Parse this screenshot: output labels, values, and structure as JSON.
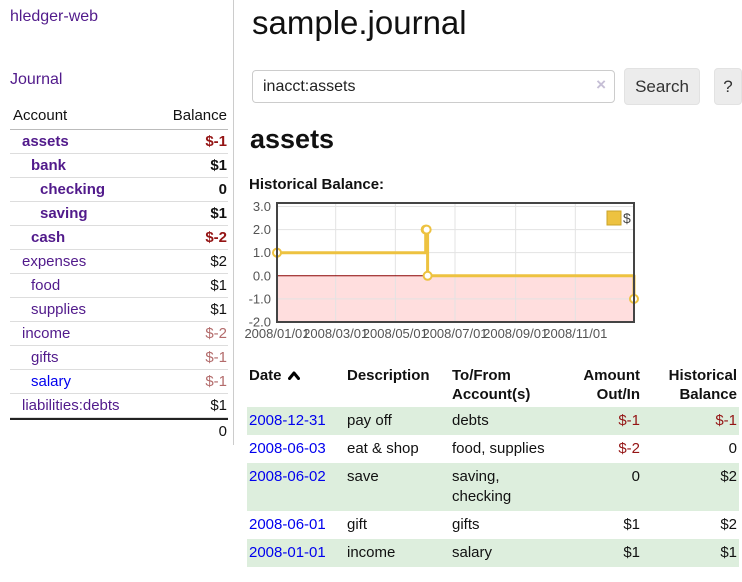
{
  "app": {
    "brand": "hledger-web",
    "nav": {
      "journal": "Journal"
    }
  },
  "colors": {
    "link_purple": "#511a8b",
    "link_blue": "#0000ee",
    "negative_strong": "#941414",
    "negative_soft": "#b36b6b",
    "row_stripe_green": "#ddeedd",
    "series_yellow": "#edc240",
    "zero_line": "#8b0000",
    "negative_region": "rgba(255,0,0,0.13)"
  },
  "sidebar": {
    "header": {
      "account": "Account",
      "balance": "Balance"
    },
    "accounts": [
      {
        "name": "assets",
        "depth": 1,
        "bold": true,
        "balance": "$-1",
        "balance_class": "neg-strong"
      },
      {
        "name": "bank",
        "depth": 2,
        "bold": true,
        "balance": "$1",
        "balance_class": ""
      },
      {
        "name": "checking",
        "depth": 3,
        "bold": true,
        "balance": "0",
        "balance_class": ""
      },
      {
        "name": "saving",
        "depth": 3,
        "bold": true,
        "balance": "$1",
        "balance_class": ""
      },
      {
        "name": "cash",
        "depth": 2,
        "bold": true,
        "balance": "$-2",
        "balance_class": "neg-strong"
      },
      {
        "name": "expenses",
        "depth": 1,
        "bold": false,
        "balance": "$2",
        "balance_class": ""
      },
      {
        "name": "food",
        "depth": 2,
        "bold": false,
        "balance": "$1",
        "balance_class": ""
      },
      {
        "name": "supplies",
        "depth": 2,
        "bold": false,
        "balance": "$1",
        "balance_class": ""
      },
      {
        "name": "income",
        "depth": 1,
        "bold": false,
        "balance": "$-2",
        "balance_class": "neg-soft"
      },
      {
        "name": "gifts",
        "depth": 2,
        "bold": false,
        "balance": "$-1",
        "balance_class": "neg-soft"
      },
      {
        "name": "salary",
        "depth": 2,
        "bold": false,
        "link_class": "blue",
        "balance": "$-1",
        "balance_class": "neg-soft"
      },
      {
        "name": "liabilities:debts",
        "depth": 1,
        "bold": false,
        "balance": "$1",
        "balance_class": ""
      }
    ],
    "total": "0"
  },
  "main": {
    "title": "sample.journal",
    "search": {
      "value": "inacct:assets",
      "clear_label": "×",
      "search_button": "Search",
      "help_button": "?"
    },
    "account_heading": "assets",
    "chart_label": "Historical Balance:"
  },
  "chart_data": {
    "type": "line",
    "title": "Historical Balance of assets",
    "step": true,
    "legend": {
      "label": "$",
      "position": "top-right"
    },
    "ylim": [
      -2,
      3
    ],
    "grid": true,
    "x_range": [
      "2008-01-01",
      "2008-12-31"
    ],
    "x_ticks": [
      {
        "date": "2008-01-01",
        "label": "2008/01/01"
      },
      {
        "date": "2008-03-01",
        "label": "2008/03/01"
      },
      {
        "date": "2008-05-01",
        "label": "2008/05/01"
      },
      {
        "date": "2008-07-01",
        "label": "2008/07/01"
      },
      {
        "date": "2008-09-01",
        "label": "2008/09/01"
      },
      {
        "date": "2008-11-01",
        "label": "2008/11/01"
      }
    ],
    "y_ticks": [
      {
        "value": 3,
        "label": "3.0"
      },
      {
        "value": 2,
        "label": "2.0"
      },
      {
        "value": 1,
        "label": "1.0"
      },
      {
        "value": 0,
        "label": "0.0"
      },
      {
        "value": -1,
        "label": "-1.0"
      },
      {
        "value": -2,
        "label": "-2.0"
      }
    ],
    "series": [
      {
        "name": "$",
        "color": "#edc240",
        "points": [
          {
            "date": "2008-01-01",
            "value": 1
          },
          {
            "date": "2008-06-01",
            "value": 2
          },
          {
            "date": "2008-06-02",
            "value": 2
          },
          {
            "date": "2008-06-03",
            "value": 0
          },
          {
            "date": "2008-12-31",
            "value": -1
          }
        ]
      }
    ]
  },
  "register": {
    "columns": [
      {
        "label": "Date",
        "align": "left",
        "sorted": "asc"
      },
      {
        "label": "Description",
        "align": "left"
      },
      {
        "label": "To/From Account(s)",
        "align": "left"
      },
      {
        "label": "Amount Out/In",
        "align": "right"
      },
      {
        "label": "Historical Balance",
        "align": "right"
      }
    ],
    "rows": [
      {
        "date": "2008-12-31",
        "description": "pay off",
        "accounts": "debts",
        "amount": "$-1",
        "amount_neg": true,
        "balance": "$-1",
        "balance_neg": true
      },
      {
        "date": "2008-06-03",
        "description": "eat & shop",
        "accounts": "food, supplies",
        "amount": "$-2",
        "amount_neg": true,
        "balance": "0",
        "balance_neg": false
      },
      {
        "date": "2008-06-02",
        "description": "save",
        "accounts": "saving, checking",
        "amount": "0",
        "amount_neg": false,
        "balance": "$2",
        "balance_neg": false
      },
      {
        "date": "2008-06-01",
        "description": "gift",
        "accounts": "gifts",
        "amount": "$1",
        "amount_neg": false,
        "balance": "$2",
        "balance_neg": false
      },
      {
        "date": "2008-01-01",
        "description": "income",
        "accounts": "salary",
        "amount": "$1",
        "amount_neg": false,
        "balance": "$1",
        "balance_neg": false
      }
    ]
  }
}
